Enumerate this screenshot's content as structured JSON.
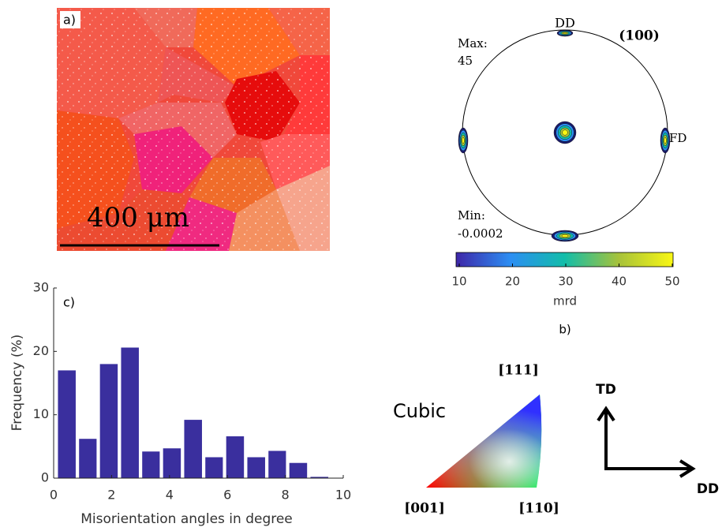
{
  "panel_a": {
    "label": "a)",
    "scale_bar": "400 μm"
  },
  "pole_figure": {
    "title": "(100)",
    "top": "DD",
    "right": "FD",
    "max_label": "Max:",
    "max": "45",
    "min_label": "Min:",
    "min": "-0.0002",
    "label": "b)",
    "colorbar": {
      "lim": [
        10,
        50
      ],
      "ticks": [
        10,
        20,
        30,
        40,
        50
      ],
      "label": "mrd"
    }
  },
  "chart_data": {
    "type": "histogram",
    "annotation": "c)",
    "x_label": "Misorientation angles in degree",
    "y_label": "Frequency (%)",
    "bins": [
      0.09,
      0.82,
      1.54,
      2.27,
      3.0,
      3.72,
      4.45,
      5.18,
      5.9,
      6.63,
      7.36,
      8.08,
      8.81,
      9.54
    ],
    "values": [
      17,
      6.2,
      18,
      20.6,
      4.2,
      4.7,
      9.2,
      3.3,
      6.6,
      3.3,
      4.3,
      2.4,
      0.2
    ],
    "color": "#3a2f9e",
    "xlim": [
      0,
      10
    ],
    "ylim": [
      0,
      30
    ],
    "xticks": [
      0,
      2,
      4,
      6,
      8,
      10
    ],
    "yticks": [
      0,
      10,
      20,
      30
    ]
  },
  "ipf": {
    "title": "Cubic",
    "corner_111": "[111]",
    "corner_001": "[001]",
    "corner_110": "[110]"
  },
  "axes": {
    "vertical": "TD",
    "horizontal": "DD"
  }
}
